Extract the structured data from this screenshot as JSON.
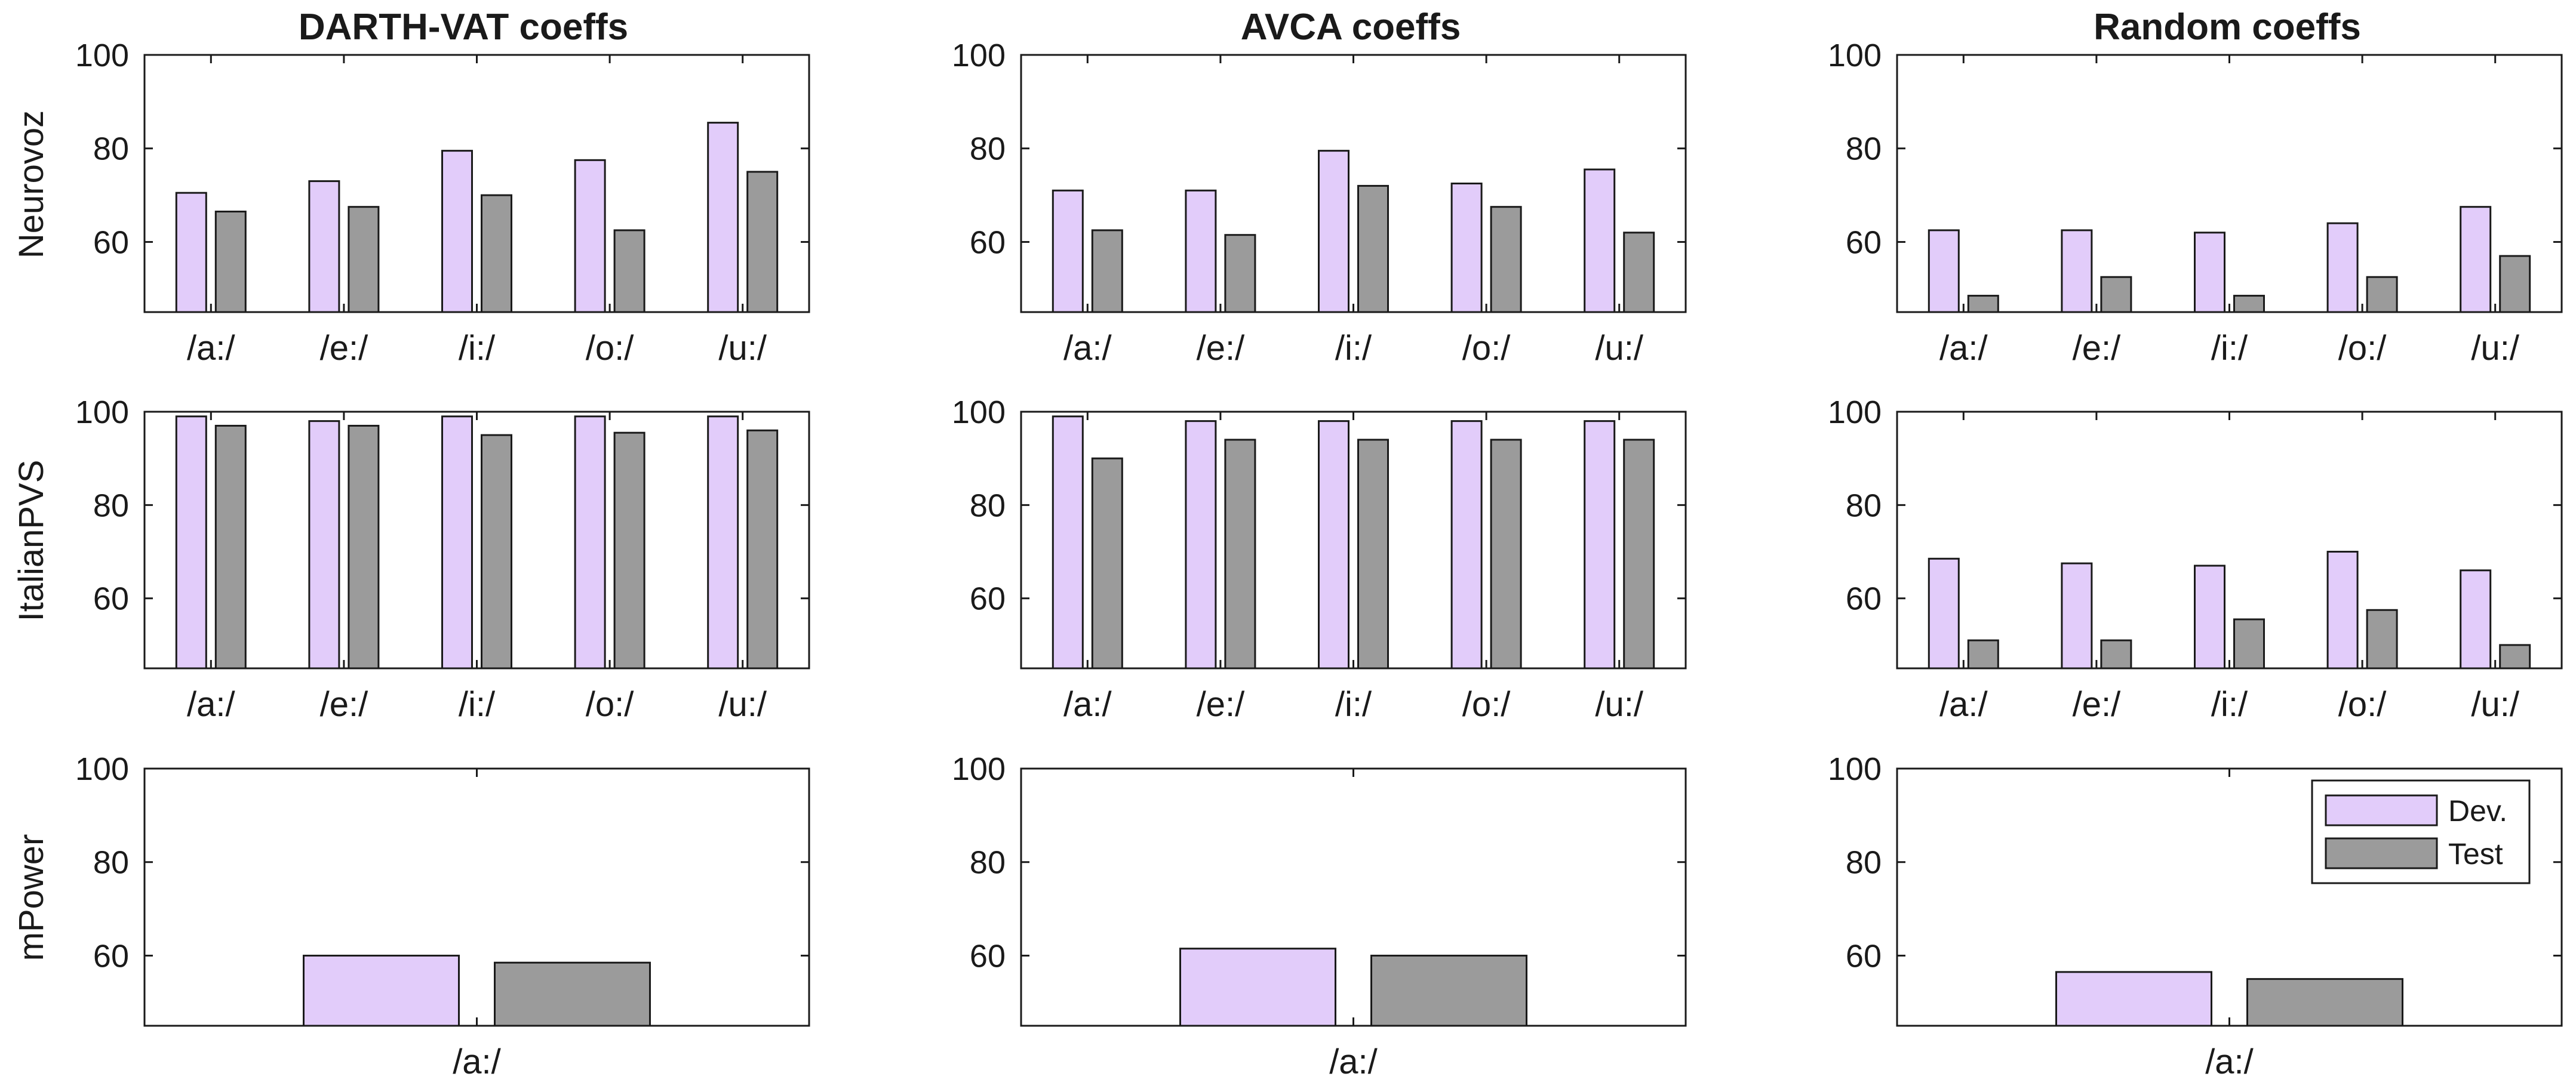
{
  "figure": {
    "column_titles": [
      "DARTH-VAT coeffs",
      "AVCA coeffs",
      "Random coeffs"
    ],
    "row_labels": [
      "Neurovoz",
      "ItalianPVS",
      "mPower"
    ]
  },
  "colors": {
    "dev": "#e2ccfa",
    "test": "#9b9b9b",
    "edge": "#1a1a1a",
    "axis": "#1a1a1a"
  },
  "legend": {
    "placement": "top-right of bottom-right panel",
    "entries": [
      "Dev.",
      "Test"
    ]
  },
  "chart_data": [
    {
      "type": "bar",
      "title": "DARTH-VAT coeffs",
      "ylabel": "Neurovoz",
      "categories": [
        "/a:/",
        "/e:/",
        "/i:/",
        "/o:/",
        "/u:/"
      ],
      "series": [
        {
          "name": "Dev.",
          "values": [
            70.5,
            73,
            79.5,
            77.5,
            85.5
          ]
        },
        {
          "name": "Test",
          "values": [
            66.5,
            67.5,
            70,
            62.5,
            75
          ]
        }
      ],
      "ylim": [
        45,
        100
      ],
      "yticks": [
        "60",
        "80",
        "100"
      ]
    },
    {
      "type": "bar",
      "title": "AVCA coeffs",
      "ylabel": "Neurovoz",
      "categories": [
        "/a:/",
        "/e:/",
        "/i:/",
        "/o:/",
        "/u:/"
      ],
      "series": [
        {
          "name": "Dev.",
          "values": [
            71,
            71,
            79.5,
            72.5,
            75.5
          ]
        },
        {
          "name": "Test",
          "values": [
            62.5,
            61.5,
            72,
            67.5,
            62
          ]
        }
      ],
      "ylim": [
        45,
        100
      ],
      "yticks": [
        "60",
        "80",
        "100"
      ]
    },
    {
      "type": "bar",
      "title": "Random coeffs",
      "ylabel": "Neurovoz",
      "categories": [
        "/a:/",
        "/e:/",
        "/i:/",
        "/o:/",
        "/u:/"
      ],
      "series": [
        {
          "name": "Dev.",
          "values": [
            62.5,
            62.5,
            62,
            64,
            67.5
          ]
        },
        {
          "name": "Test",
          "values": [
            48.5,
            52.5,
            48.5,
            52.5,
            57
          ]
        }
      ],
      "ylim": [
        45,
        100
      ],
      "yticks": [
        "60",
        "80",
        "100"
      ]
    },
    {
      "type": "bar",
      "title": "DARTH-VAT coeffs",
      "ylabel": "ItalianPVS",
      "categories": [
        "/a:/",
        "/e:/",
        "/i:/",
        "/o:/",
        "/u:/"
      ],
      "series": [
        {
          "name": "Dev.",
          "values": [
            99,
            98,
            99,
            99,
            99
          ]
        },
        {
          "name": "Test",
          "values": [
            97,
            97,
            95,
            95.5,
            96
          ]
        }
      ],
      "ylim": [
        45,
        100
      ],
      "yticks": [
        "60",
        "80",
        "100"
      ]
    },
    {
      "type": "bar",
      "title": "AVCA coeffs",
      "ylabel": "ItalianPVS",
      "categories": [
        "/a:/",
        "/e:/",
        "/i:/",
        "/o:/",
        "/u:/"
      ],
      "series": [
        {
          "name": "Dev.",
          "values": [
            99,
            98,
            98,
            98,
            98
          ]
        },
        {
          "name": "Test",
          "values": [
            90,
            94,
            94,
            94,
            94
          ]
        }
      ],
      "ylim": [
        45,
        100
      ],
      "yticks": [
        "60",
        "80",
        "100"
      ]
    },
    {
      "type": "bar",
      "title": "Random coeffs",
      "ylabel": "ItalianPVS",
      "categories": [
        "/a:/",
        "/e:/",
        "/i:/",
        "/o:/",
        "/u:/"
      ],
      "series": [
        {
          "name": "Dev.",
          "values": [
            68.5,
            67.5,
            67,
            70,
            66
          ]
        },
        {
          "name": "Test",
          "values": [
            51,
            51,
            55.5,
            57.5,
            50
          ]
        }
      ],
      "ylim": [
        45,
        100
      ],
      "yticks": [
        "60",
        "80",
        "100"
      ]
    },
    {
      "type": "bar",
      "title": "DARTH-VAT coeffs",
      "ylabel": "mPower",
      "categories": [
        "/a:/"
      ],
      "series": [
        {
          "name": "Dev.",
          "values": [
            60
          ]
        },
        {
          "name": "Test",
          "values": [
            58.5
          ]
        }
      ],
      "ylim": [
        45,
        100
      ],
      "yticks": [
        "60",
        "80",
        "100"
      ]
    },
    {
      "type": "bar",
      "title": "AVCA coeffs",
      "ylabel": "mPower",
      "categories": [
        "/a:/"
      ],
      "series": [
        {
          "name": "Dev.",
          "values": [
            61.5
          ]
        },
        {
          "name": "Test",
          "values": [
            60
          ]
        }
      ],
      "ylim": [
        45,
        100
      ],
      "yticks": [
        "60",
        "80",
        "100"
      ]
    },
    {
      "type": "bar",
      "title": "Random coeffs",
      "ylabel": "mPower",
      "categories": [
        "/a:/"
      ],
      "series": [
        {
          "name": "Dev.",
          "values": [
            56.5
          ]
        },
        {
          "name": "Test",
          "values": [
            55
          ]
        }
      ],
      "ylim": [
        45,
        100
      ],
      "yticks": [
        "60",
        "80",
        "100"
      ]
    }
  ]
}
